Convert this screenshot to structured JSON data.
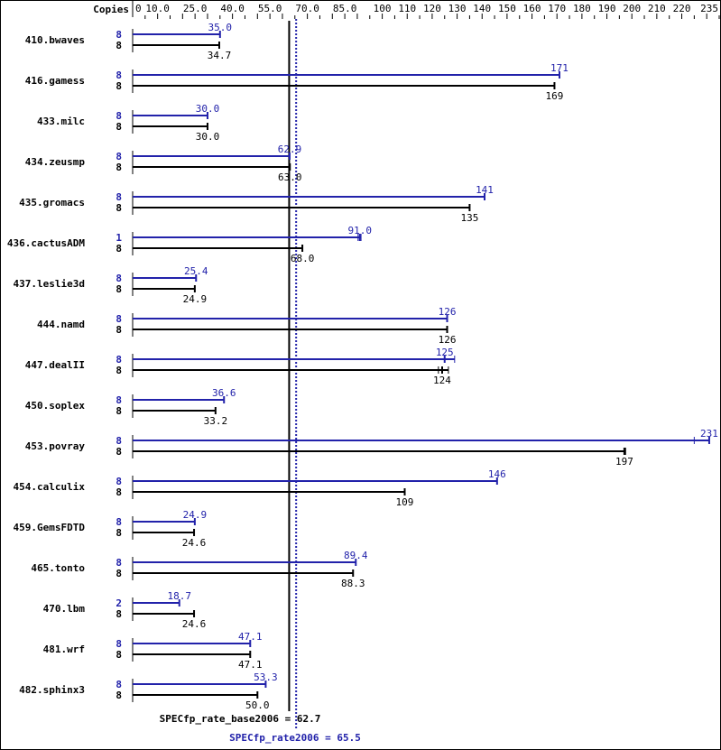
{
  "chart_data": {
    "type": "bar",
    "orientation": "horizontal",
    "copies_header": "Copies",
    "xlim": [
      0,
      235
    ],
    "tick_labels": [
      "0",
      "10.0",
      "25.0",
      "40.0",
      "55.0",
      "70.0",
      "85.0",
      "100",
      "110",
      "120",
      "130",
      "140",
      "150",
      "160",
      "170",
      "180",
      "190",
      "200",
      "210",
      "220",
      "235"
    ],
    "tick_values": [
      0,
      10,
      25,
      40,
      55,
      70,
      85,
      100,
      110,
      120,
      130,
      140,
      150,
      160,
      170,
      180,
      190,
      200,
      210,
      220,
      235
    ],
    "colors": {
      "peak": "#2222aa",
      "base": "#000000"
    },
    "categories": [
      "410.bwaves",
      "416.gamess",
      "433.milc",
      "434.zeusmp",
      "435.gromacs",
      "436.cactusADM",
      "437.leslie3d",
      "444.namd",
      "447.dealII",
      "450.soplex",
      "453.povray",
      "454.calculix",
      "459.GemsFDTD",
      "465.tonto",
      "470.lbm",
      "481.wrf",
      "482.sphinx3"
    ],
    "series": [
      {
        "key": "peak",
        "copies": [
          "8",
          "8",
          "8",
          "8",
          "8",
          "1",
          "8",
          "8",
          "8",
          "8",
          "8",
          "8",
          "8",
          "8",
          "2",
          "8",
          "8"
        ],
        "values": [
          35.0,
          171,
          30.0,
          62.9,
          141,
          91.0,
          25.4,
          126,
          125,
          36.6,
          231,
          146,
          24.9,
          89.4,
          18.7,
          47.1,
          53.3
        ],
        "labels": [
          "35.0",
          "171",
          "30.0",
          "62.9",
          "141",
          "91.0",
          "25.4",
          "126",
          "125",
          "36.6",
          "231",
          "146",
          "24.9",
          "89.4",
          "18.7",
          "47.1",
          "53.3"
        ],
        "max": [
          null,
          null,
          null,
          null,
          null,
          91.5,
          null,
          null,
          129,
          null,
          231,
          null,
          null,
          null,
          null,
          null,
          null
        ],
        "min": [
          null,
          null,
          null,
          null,
          null,
          90.3,
          null,
          null,
          null,
          null,
          225,
          null,
          null,
          null,
          null,
          null,
          null
        ]
      },
      {
        "key": "base",
        "copies": [
          "8",
          "8",
          "8",
          "8",
          "8",
          "8",
          "8",
          "8",
          "8",
          "8",
          "8",
          "8",
          "8",
          "8",
          "8",
          "8",
          "8"
        ],
        "values": [
          34.7,
          169,
          30.0,
          63.0,
          135,
          68.0,
          24.9,
          126,
          124,
          33.2,
          197,
          109,
          24.6,
          88.3,
          24.6,
          47.1,
          50.0
        ],
        "labels": [
          "34.7",
          "169",
          "30.0",
          "63.0",
          "135",
          "68.0",
          "24.9",
          "126",
          "124",
          "33.2",
          "197",
          "109",
          "24.6",
          "88.3",
          "24.6",
          "47.1",
          "50.0"
        ],
        "max": [
          null,
          null,
          null,
          null,
          null,
          null,
          null,
          null,
          126.5,
          null,
          197.5,
          null,
          null,
          null,
          null,
          null,
          null
        ],
        "min": [
          null,
          null,
          null,
          null,
          null,
          null,
          null,
          null,
          122.5,
          null,
          null,
          null,
          null,
          null,
          null,
          null,
          null
        ]
      }
    ],
    "reference_lines": [
      {
        "key": "base",
        "label": "SPECfp_rate_base2006 = 62.7",
        "value": 62.7
      },
      {
        "key": "peak",
        "label": "SPECfp_rate2006 = 65.5",
        "value": 65.5
      }
    ]
  }
}
